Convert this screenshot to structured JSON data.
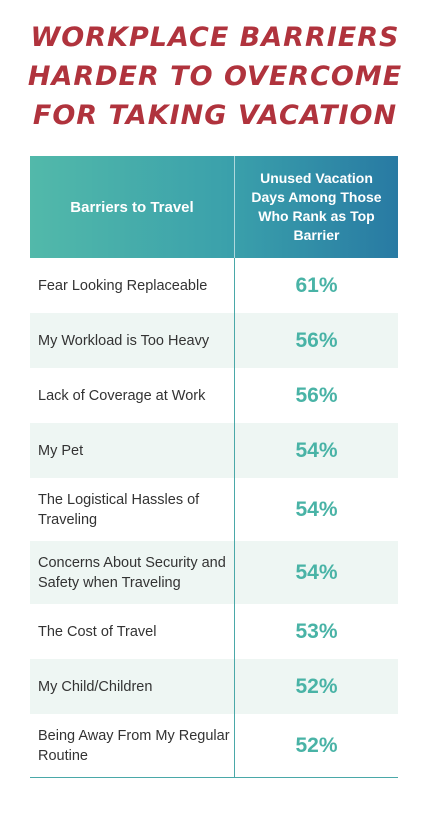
{
  "title_lines": [
    "WORKPLACE BARRIERS",
    "HARDER TO OVERCOME",
    "FOR TAKING VACATION"
  ],
  "chart_data": {
    "type": "table",
    "title": "WORKPLACE BARRIERS HARDER TO OVERCOME FOR TAKING VACATION",
    "columns": [
      "Barriers to Travel",
      "Unused Vacation Days Among Those Who Rank as Top Barrier"
    ],
    "rows": [
      {
        "barrier": "Fear Looking Replaceable",
        "value": "61%"
      },
      {
        "barrier": "My Workload is Too Heavy",
        "value": "56%"
      },
      {
        "barrier": "Lack of Coverage at Work",
        "value": "56%"
      },
      {
        "barrier": "My Pet",
        "value": "54%"
      },
      {
        "barrier": "The Logistical Hassles of Traveling",
        "value": "54%"
      },
      {
        "barrier": "Concerns About Security and Safety when Traveling",
        "value": "54%"
      },
      {
        "barrier": "The Cost of Travel",
        "value": "53%"
      },
      {
        "barrier": "My Child/Children",
        "value": "52%"
      },
      {
        "barrier": "Being Away From My Regular Routine",
        "value": "52%"
      }
    ],
    "colors": {
      "title": "#b0333d",
      "header_start": "#52b9aa",
      "header_end": "#287aa3",
      "value_text": "#49b3a6",
      "alt_row": "#eef6f3"
    }
  }
}
